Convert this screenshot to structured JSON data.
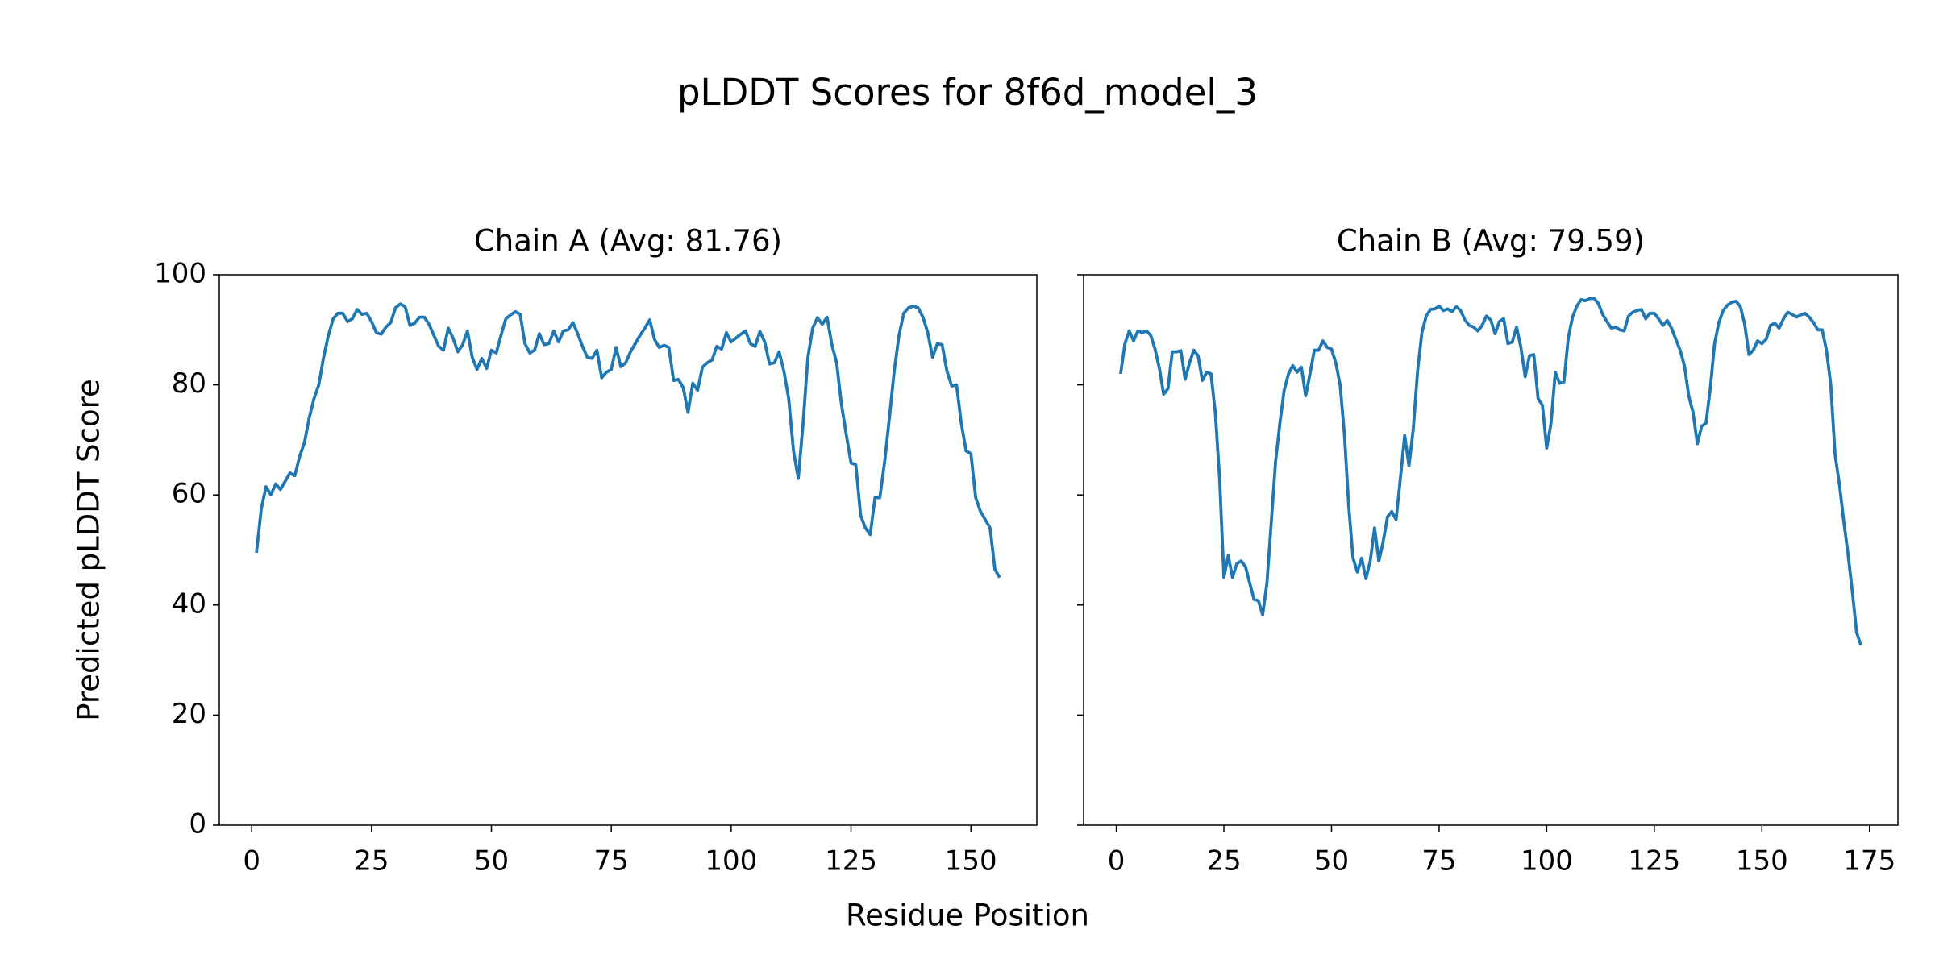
{
  "title": "pLDDT Scores for 8f6d_model_3",
  "xlabel": "Residue Position",
  "chart_data": [
    {
      "type": "line",
      "title": "Chain A (Avg: 81.76)",
      "ylabel": "Predicted pLDDT Score",
      "color": "#1f77b4",
      "x": [
        1,
        2,
        3,
        4,
        5,
        6,
        7,
        8,
        9,
        10,
        11,
        12,
        13,
        14,
        15,
        16,
        17,
        18,
        19,
        20,
        21,
        22,
        23,
        24,
        25,
        26,
        27,
        28,
        29,
        30,
        31,
        32,
        33,
        34,
        35,
        36,
        37,
        38,
        39,
        40,
        41,
        42,
        43,
        44,
        45,
        46,
        47,
        48,
        49,
        50,
        51,
        52,
        53,
        54,
        55,
        56,
        57,
        58,
        59,
        60,
        61,
        62,
        63,
        64,
        65,
        66,
        67,
        68,
        69,
        70,
        71,
        72,
        73,
        74,
        75,
        76,
        77,
        78,
        79,
        80,
        81,
        82,
        83,
        84,
        85,
        86,
        87,
        88,
        89,
        90,
        91,
        92,
        93,
        94,
        95,
        96,
        97,
        98,
        99,
        100,
        101,
        102,
        103,
        104,
        105,
        106,
        107,
        108,
        109,
        110,
        111,
        112,
        113,
        114,
        115,
        116,
        117,
        118,
        119,
        120,
        121,
        122,
        123,
        124,
        125,
        126,
        127,
        128,
        129,
        130,
        131,
        132,
        133,
        134,
        135,
        136,
        137,
        138,
        139,
        140,
        141,
        142,
        143,
        144,
        145,
        146,
        147,
        148,
        149,
        150,
        151,
        152,
        153,
        154,
        155,
        156
      ],
      "values": [
        49.5,
        57.5,
        61.5,
        60,
        62,
        61,
        62.5,
        64,
        63.5,
        67,
        69.5,
        74,
        77.5,
        80,
        85,
        89,
        92,
        93,
        93,
        91.5,
        92,
        93.7,
        92.8,
        93,
        91.5,
        89.5,
        89.2,
        90.5,
        91.3,
        94,
        94.7,
        94.2,
        90.8,
        91.2,
        92.3,
        92.3,
        91,
        89,
        87,
        86.3,
        90.3,
        88.5,
        86,
        87.3,
        89.8,
        85,
        82.8,
        84.8,
        83,
        86.3,
        85.8,
        89,
        92,
        92.7,
        93.3,
        92.8,
        87.5,
        85.8,
        86.3,
        89.3,
        87.3,
        87.5,
        89.8,
        87.8,
        89.8,
        90,
        91.3,
        89.3,
        87,
        85,
        84.8,
        86.3,
        81.3,
        82.3,
        82.8,
        86.8,
        83.3,
        84,
        86,
        87.5,
        89,
        90.3,
        91.8,
        88.3,
        86.8,
        87.2,
        86.8,
        80.8,
        81,
        79.5,
        75,
        80.3,
        79,
        83.2,
        84,
        84.5,
        87,
        86.5,
        89.5,
        87.8,
        88.5,
        89.2,
        89.8,
        87.5,
        87,
        89.7,
        87.8,
        83.8,
        84,
        86,
        82.5,
        77.5,
        68,
        63,
        73,
        85,
        90.3,
        92.2,
        91,
        92.3,
        87.3,
        84,
        76.5,
        71,
        65.8,
        65.5,
        56.3,
        54,
        52.8,
        59.5,
        59.5,
        66,
        74,
        82.5,
        89,
        93,
        94,
        94.3,
        94,
        92.3,
        89.5,
        85,
        87.5,
        87.3,
        82.5,
        79.8,
        80,
        73,
        68,
        67.5,
        59.5,
        57,
        55.5,
        54,
        46.5,
        45
      ],
      "xlim": [
        -6.75,
        163.75
      ],
      "ylim": [
        0,
        100
      ],
      "xticks": [
        0,
        25,
        50,
        75,
        100,
        125,
        150
      ],
      "yticks": [
        0,
        20,
        40,
        60,
        80,
        100
      ]
    },
    {
      "type": "line",
      "title": "Chain B (Avg: 79.59)",
      "color": "#1f77b4",
      "x": [
        1,
        2,
        3,
        4,
        5,
        6,
        7,
        8,
        9,
        10,
        11,
        12,
        13,
        14,
        15,
        16,
        17,
        18,
        19,
        20,
        21,
        22,
        23,
        24,
        25,
        26,
        27,
        28,
        29,
        30,
        31,
        32,
        33,
        34,
        35,
        36,
        37,
        38,
        39,
        40,
        41,
        42,
        43,
        44,
        45,
        46,
        47,
        48,
        49,
        50,
        51,
        52,
        53,
        54,
        55,
        56,
        57,
        58,
        59,
        60,
        61,
        62,
        63,
        64,
        65,
        66,
        67,
        68,
        69,
        70,
        71,
        72,
        73,
        74,
        75,
        76,
        77,
        78,
        79,
        80,
        81,
        82,
        83,
        84,
        85,
        86,
        87,
        88,
        89,
        90,
        91,
        92,
        93,
        94,
        95,
        96,
        97,
        98,
        99,
        100,
        101,
        102,
        103,
        104,
        105,
        106,
        107,
        108,
        109,
        110,
        111,
        112,
        113,
        114,
        115,
        116,
        117,
        118,
        119,
        120,
        121,
        122,
        123,
        124,
        125,
        126,
        127,
        128,
        129,
        130,
        131,
        132,
        133,
        134,
        135,
        136,
        137,
        138,
        139,
        140,
        141,
        142,
        143,
        144,
        145,
        146,
        147,
        148,
        149,
        150,
        151,
        152,
        153,
        154,
        155,
        156,
        157,
        158,
        159,
        160,
        161,
        162,
        163,
        164,
        165,
        166,
        167,
        168,
        169,
        170,
        171,
        172,
        173
      ],
      "values": [
        82,
        87.5,
        89.8,
        88,
        89.8,
        89.5,
        89.8,
        89,
        86.5,
        83,
        78.3,
        79.3,
        86,
        86,
        86.2,
        81,
        84,
        86.3,
        85.3,
        80.8,
        82.3,
        82,
        75,
        63,
        45,
        49,
        45,
        47.5,
        48,
        47,
        44,
        41,
        40.8,
        38.2,
        44,
        55,
        66,
        73,
        79,
        82,
        83.5,
        82.3,
        83.2,
        78,
        82,
        86.3,
        86.3,
        88,
        86.8,
        86.5,
        84,
        80,
        71,
        58,
        48.5,
        46,
        48.5,
        44.8,
        48,
        54,
        48,
        51.5,
        56,
        57,
        55.5,
        63,
        70.8,
        65.3,
        72,
        82.5,
        89.5,
        92.5,
        93.7,
        93.8,
        94.3,
        93.5,
        93.8,
        93.3,
        94.2,
        93.5,
        91.8,
        90.8,
        90.5,
        89.8,
        90.8,
        92.5,
        91.8,
        89.3,
        91.5,
        92,
        87.5,
        87.8,
        90.5,
        86.8,
        81.5,
        85.3,
        85.5,
        77.5,
        76.3,
        68.5,
        73,
        82.3,
        80.3,
        80.5,
        88.5,
        92.3,
        94.3,
        95.5,
        95.3,
        95.7,
        95.7,
        94.8,
        92.8,
        91.5,
        90.3,
        90.5,
        90,
        89.8,
        92.5,
        93.2,
        93.5,
        93.7,
        92,
        93,
        93,
        92,
        90.8,
        91.7,
        90.3,
        88.3,
        86.3,
        83.5,
        78,
        75,
        69.3,
        72.5,
        73,
        79.3,
        87.5,
        91.3,
        93.5,
        94.5,
        95,
        95.2,
        94.2,
        91,
        85.5,
        86.3,
        88,
        87.5,
        88.3,
        90.8,
        91.2,
        90.3,
        92,
        93.2,
        92.8,
        92.3,
        92.7,
        93,
        92.3,
        91.3,
        90,
        90,
        86.3,
        80,
        67.3,
        62,
        55.3,
        49.3,
        42.5,
        35,
        32.7
      ],
      "xlim": [
        -7.6,
        181.6
      ],
      "ylim": [
        0,
        100
      ],
      "xticks": [
        0,
        25,
        50,
        75,
        100,
        125,
        150,
        175
      ],
      "yticks": [
        0,
        20,
        40,
        60,
        80,
        100
      ]
    }
  ]
}
